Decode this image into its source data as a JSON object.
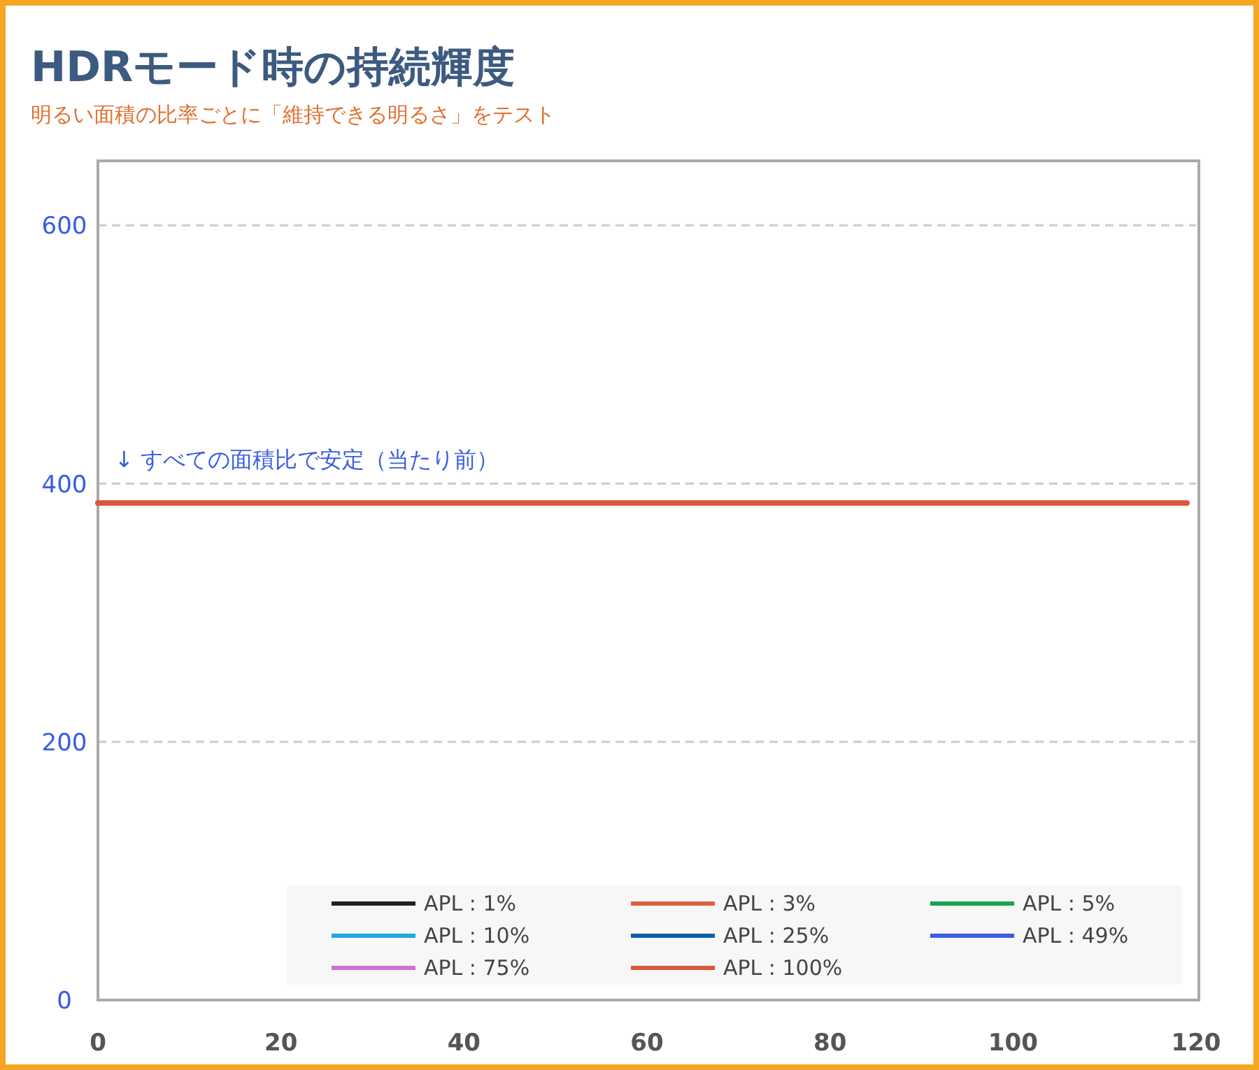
{
  "chart_data": {
    "type": "line",
    "title": "HDRモード時の持続輝度",
    "subtitle": "明るい面積の比率ごとに「維持できる明るさ」をテスト",
    "annotations": [
      "↓ すべての面積比で安定（当たり前）"
    ],
    "x": [
      0,
      119
    ],
    "series": [
      {
        "name": "APL : 1%",
        "color": "#222222",
        "values": [
          null,
          null
        ]
      },
      {
        "name": "APL : 3%",
        "color": "#e0603e",
        "values": [
          null,
          null
        ]
      },
      {
        "name": "APL : 5%",
        "color": "#1aa34a",
        "values": [
          null,
          null
        ]
      },
      {
        "name": "APL : 10%",
        "color": "#1ea8e0",
        "values": [
          null,
          null
        ]
      },
      {
        "name": "APL : 25%",
        "color": "#0c5fa8",
        "values": [
          null,
          null
        ]
      },
      {
        "name": "APL : 49%",
        "color": "#3b5ee0",
        "values": [
          null,
          null
        ]
      },
      {
        "name": "APL : 75%",
        "color": "#d070d0",
        "values": [
          null,
          null
        ]
      },
      {
        "name": "APL : 100%",
        "color": "#d9573a",
        "values": [
          385,
          385
        ]
      }
    ],
    "xlim": [
      0,
      120
    ],
    "ylim": [
      0,
      650
    ],
    "xticks": [
      0,
      20,
      40,
      60,
      80,
      100,
      120
    ],
    "yticks": [
      0,
      200,
      400,
      600
    ],
    "grid": "y",
    "legend": "bottom",
    "marker": "none",
    "line_style": "solid"
  }
}
